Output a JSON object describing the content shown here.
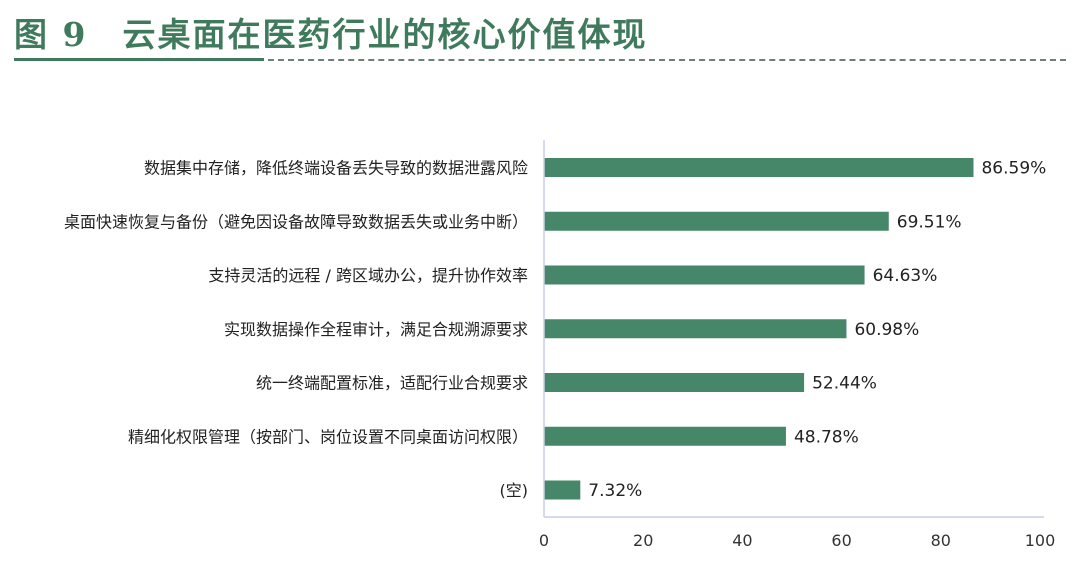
{
  "header": {
    "title": "图 9　云桌面在医药行业的核心价值体现"
  },
  "colors": {
    "bar": "#46876a",
    "title": "#3f7a5c",
    "axis": "#c8cde8"
  },
  "chart_data": {
    "type": "bar",
    "orientation": "horizontal",
    "categories": [
      "数据集中存储，降低终端设备丢失导致的数据泄露风险",
      "桌面快速恢复与备份（避免因设备故障导致数据丢失或业务中断）",
      "支持灵活的远程 / 跨区域办公，提升协作效率",
      "实现数据操作全程审计，满足合规溯源要求",
      "统一终端配置标准，适配行业合规要求",
      "精细化权限管理（按部门、岗位设置不同桌面访问权限）",
      "(空)"
    ],
    "values": [
      86.59,
      69.51,
      64.63,
      60.98,
      52.44,
      48.78,
      7.32
    ],
    "value_labels": [
      "86.59%",
      "69.51%",
      "64.63%",
      "60.98%",
      "52.44%",
      "48.78%",
      "7.32%"
    ],
    "xlim": [
      0,
      100
    ],
    "xticks": [
      0,
      20,
      40,
      60,
      80,
      100
    ],
    "grid": false,
    "legend": "none"
  }
}
